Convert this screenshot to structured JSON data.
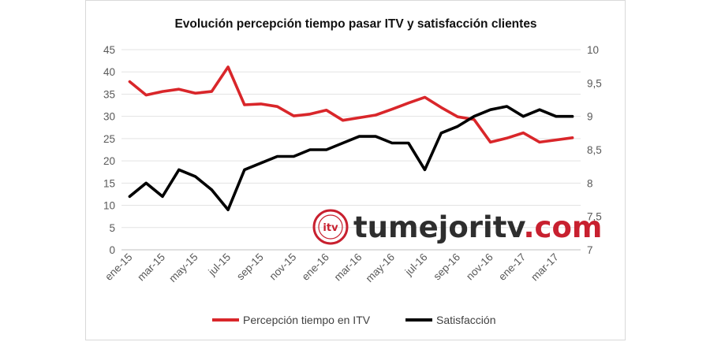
{
  "chart_data": {
    "type": "line",
    "title": "Evolución percepción tiempo pasar ITV y satisfacción clientes",
    "xlabel": "",
    "ylabel": "",
    "categories": [
      "ene-15",
      "feb-15",
      "mar-15",
      "abr-15",
      "may-15",
      "jun-15",
      "jul-15",
      "ago-15",
      "sep-15",
      "oct-15",
      "nov-15",
      "dic-15",
      "ene-16",
      "feb-16",
      "mar-16",
      "abr-16",
      "may-16",
      "jun-16",
      "jul-16",
      "ago-16",
      "sep-16",
      "oct-16",
      "nov-16",
      "dic-16",
      "ene-17",
      "feb-17",
      "mar-17",
      "abr-17"
    ],
    "x_tick_labels": [
      "ene-15",
      "mar-15",
      "may-15",
      "jul-15",
      "sep-15",
      "nov-15",
      "ene-16",
      "mar-16",
      "may-16",
      "jul-16",
      "sep-16",
      "nov-16",
      "ene-17",
      "mar-17"
    ],
    "y_left": {
      "range": [
        0,
        45
      ],
      "ticks": [
        "0",
        "5",
        "10",
        "15",
        "20",
        "25",
        "30",
        "35",
        "40",
        "45"
      ]
    },
    "y_right": {
      "range": [
        7,
        10
      ],
      "ticks": [
        "7",
        "7,5",
        "8",
        "8,5",
        "9",
        "9,5",
        "10"
      ]
    },
    "grid": "horizontal",
    "legend_position": "bottom",
    "series": [
      {
        "name": "Percepción tiempo en ITV",
        "axis": "left",
        "color": "#d9262a",
        "values": [
          37.8,
          34.8,
          35.6,
          36.1,
          35.2,
          35.6,
          41.1,
          32.6,
          32.8,
          32.2,
          30.1,
          30.5,
          31.4,
          29.1,
          29.7,
          30.3,
          31.6,
          33.0,
          34.3,
          32.0,
          29.9,
          29.3,
          24.2,
          25.1,
          26.3,
          24.2,
          24.7,
          25.2
        ]
      },
      {
        "name": "Satisfacción",
        "axis": "right",
        "color": "#000000",
        "values": [
          7.8,
          8.0,
          7.8,
          8.2,
          8.1,
          7.9,
          7.6,
          8.2,
          8.3,
          8.4,
          8.4,
          8.5,
          8.5,
          8.6,
          8.7,
          8.7,
          8.6,
          8.6,
          8.2,
          8.75,
          8.85,
          9.0,
          9.1,
          9.15,
          9.0,
          9.1,
          9.0,
          9.0
        ]
      }
    ]
  },
  "watermark": {
    "emblem_text": "itv",
    "text_part1": "tumejoritv",
    "text_part2": ".com",
    "color_dark": "#2e2e2e",
    "color_accent": "#c8202f"
  }
}
